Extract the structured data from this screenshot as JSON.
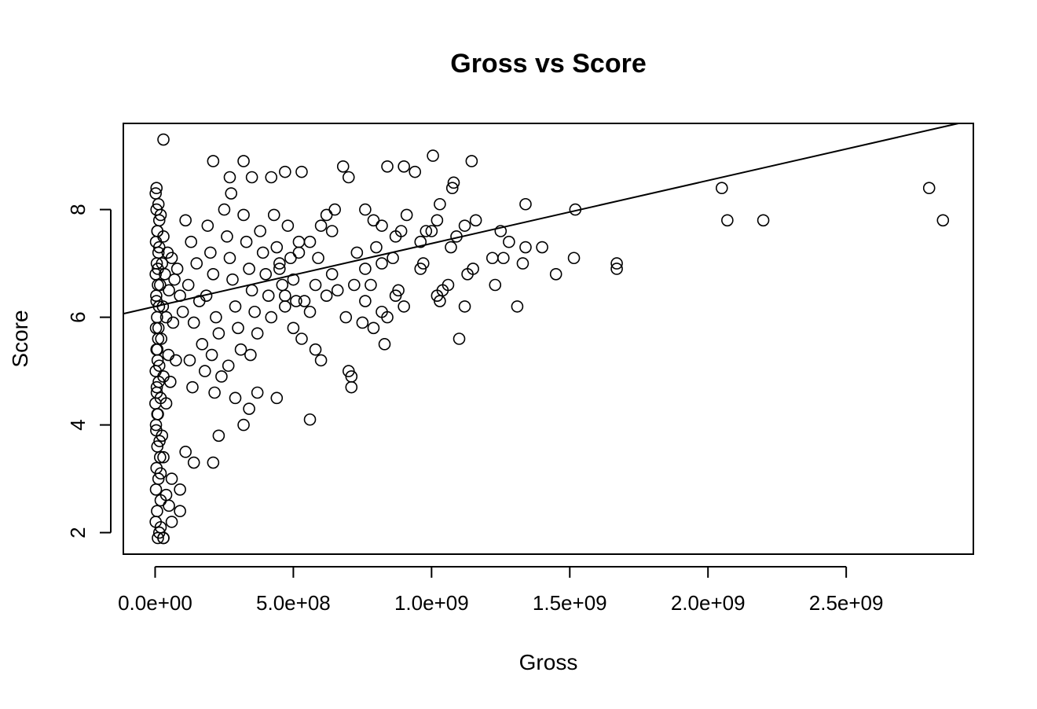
{
  "chart_data": {
    "type": "scatter",
    "title": "Gross vs Score",
    "xlabel": "Gross",
    "ylabel": "Score",
    "xlim": [
      -115000000,
      2960000000
    ],
    "ylim": [
      1.6,
      9.6
    ],
    "x_ticks": [
      0,
      500000000,
      1000000000,
      1500000000,
      2000000000,
      2500000000
    ],
    "x_tick_labels": [
      "0.0e+00",
      "5.0e+08",
      "1.0e+09",
      "1.5e+09",
      "2.0e+09",
      "2.5e+09"
    ],
    "y_ticks": [
      2,
      4,
      6,
      8
    ],
    "y_tick_labels": [
      "2",
      "4",
      "6",
      "8"
    ],
    "grid": false,
    "marker": "open-circle",
    "colors": {
      "points": "#000000",
      "line": "#000000",
      "frame": "#000000"
    },
    "regression_line": {
      "intercept": 6.2,
      "slope": 1.17e-09
    },
    "dense_cluster_note_points": [
      [
        5000000,
        8.4
      ],
      [
        12000000,
        8.1
      ],
      [
        20000000,
        7.9
      ],
      [
        8000000,
        7.6
      ],
      [
        30000000,
        7.5
      ],
      [
        15000000,
        7.3
      ],
      [
        45000000,
        7.2
      ],
      [
        25000000,
        7.0
      ],
      [
        60000000,
        7.1
      ],
      [
        10000000,
        6.9
      ],
      [
        35000000,
        6.8
      ],
      [
        80000000,
        6.9
      ],
      [
        18000000,
        6.6
      ],
      [
        50000000,
        6.5
      ],
      [
        70000000,
        6.7
      ],
      [
        5000000,
        6.3
      ],
      [
        28000000,
        6.2
      ],
      [
        90000000,
        6.4
      ],
      [
        40000000,
        6.0
      ],
      [
        12000000,
        5.8
      ],
      [
        65000000,
        5.9
      ],
      [
        22000000,
        5.6
      ],
      [
        100000000,
        6.1
      ],
      [
        8000000,
        5.4
      ],
      [
        48000000,
        5.3
      ],
      [
        15000000,
        5.1
      ],
      [
        75000000,
        5.2
      ],
      [
        30000000,
        4.9
      ],
      [
        6000000,
        4.7
      ],
      [
        55000000,
        4.8
      ],
      [
        20000000,
        4.5
      ],
      [
        10000000,
        4.2
      ],
      [
        40000000,
        4.4
      ],
      [
        3000000,
        4.0
      ],
      [
        25000000,
        3.8
      ],
      [
        8000000,
        3.6
      ],
      [
        18000000,
        3.4
      ],
      [
        5000000,
        3.2
      ],
      [
        12000000,
        3.0
      ],
      [
        3000000,
        2.8
      ],
      [
        20000000,
        2.6
      ],
      [
        7000000,
        2.4
      ],
      [
        2000000,
        2.2
      ],
      [
        15000000,
        2.0
      ],
      [
        30000000,
        1.9
      ],
      [
        110000000,
        7.8
      ],
      [
        130000000,
        7.4
      ],
      [
        150000000,
        7.0
      ],
      [
        120000000,
        6.6
      ],
      [
        160000000,
        6.3
      ],
      [
        140000000,
        5.9
      ],
      [
        170000000,
        5.5
      ],
      [
        125000000,
        5.2
      ],
      [
        180000000,
        5.0
      ],
      [
        135000000,
        4.7
      ],
      [
        190000000,
        7.7
      ],
      [
        200000000,
        7.2
      ],
      [
        210000000,
        6.8
      ],
      [
        185000000,
        6.4
      ],
      [
        220000000,
        6.0
      ],
      [
        230000000,
        5.7
      ],
      [
        205000000,
        5.3
      ],
      [
        240000000,
        4.9
      ],
      [
        215000000,
        4.6
      ],
      [
        250000000,
        8.0
      ],
      [
        260000000,
        7.5
      ],
      [
        270000000,
        7.1
      ],
      [
        280000000,
        6.7
      ],
      [
        290000000,
        6.2
      ],
      [
        300000000,
        5.8
      ],
      [
        310000000,
        5.4
      ],
      [
        265000000,
        5.1
      ],
      [
        275000000,
        8.3
      ],
      [
        320000000,
        7.9
      ],
      [
        330000000,
        7.4
      ],
      [
        340000000,
        6.9
      ],
      [
        350000000,
        6.5
      ],
      [
        360000000,
        6.1
      ],
      [
        370000000,
        5.7
      ],
      [
        345000000,
        5.3
      ],
      [
        380000000,
        7.6
      ],
      [
        390000000,
        7.2
      ],
      [
        400000000,
        6.8
      ],
      [
        410000000,
        6.4
      ],
      [
        420000000,
        6.0
      ],
      [
        430000000,
        7.9
      ],
      [
        440000000,
        7.3
      ],
      [
        450000000,
        6.9
      ],
      [
        460000000,
        6.6
      ],
      [
        470000000,
        6.2
      ],
      [
        480000000,
        7.7
      ],
      [
        490000000,
        7.1
      ],
      [
        500000000,
        6.7
      ],
      [
        510000000,
        6.3
      ],
      [
        520000000,
        7.4
      ]
    ],
    "points": [
      [
        30000000,
        9.3
      ],
      [
        210000000,
        8.9
      ],
      [
        320000000,
        8.9
      ],
      [
        270000000,
        8.6
      ],
      [
        350000000,
        8.6
      ],
      [
        420000000,
        8.6
      ],
      [
        470000000,
        8.7
      ],
      [
        530000000,
        8.7
      ],
      [
        680000000,
        8.8
      ],
      [
        700000000,
        8.6
      ],
      [
        840000000,
        8.8
      ],
      [
        900000000,
        8.8
      ],
      [
        940000000,
        8.7
      ],
      [
        1005000000,
        9.0
      ],
      [
        1145000000,
        8.9
      ],
      [
        1080000000,
        8.5
      ],
      [
        1075000000,
        8.4
      ],
      [
        1030000000,
        8.1
      ],
      [
        1340000000,
        8.1
      ],
      [
        1520000000,
        8.0
      ],
      [
        2050000000,
        8.4
      ],
      [
        2800000000,
        8.4
      ],
      [
        2070000000,
        7.8
      ],
      [
        2200000000,
        7.8
      ],
      [
        2850000000,
        7.8
      ],
      [
        1160000000,
        7.8
      ],
      [
        1250000000,
        7.6
      ],
      [
        1280000000,
        7.4
      ],
      [
        1340000000,
        7.3
      ],
      [
        1400000000,
        7.3
      ],
      [
        1515000000,
        7.1
      ],
      [
        1670000000,
        7.0
      ],
      [
        1670000000,
        6.9
      ],
      [
        1450000000,
        6.8
      ],
      [
        1330000000,
        7.0
      ],
      [
        1220000000,
        7.1
      ],
      [
        1260000000,
        7.1
      ],
      [
        1230000000,
        6.6
      ],
      [
        1310000000,
        6.2
      ],
      [
        1120000000,
        6.2
      ],
      [
        1100000000,
        5.6
      ],
      [
        1150000000,
        6.9
      ],
      [
        1130000000,
        6.8
      ],
      [
        1060000000,
        6.6
      ],
      [
        1040000000,
        6.5
      ],
      [
        1020000000,
        6.4
      ],
      [
        1030000000,
        6.3
      ],
      [
        1070000000,
        7.3
      ],
      [
        1120000000,
        7.7
      ],
      [
        1090000000,
        7.5
      ],
      [
        960000000,
        7.4
      ],
      [
        970000000,
        7.0
      ],
      [
        960000000,
        6.9
      ],
      [
        980000000,
        7.6
      ],
      [
        910000000,
        7.9
      ],
      [
        890000000,
        7.6
      ],
      [
        870000000,
        7.5
      ],
      [
        880000000,
        6.5
      ],
      [
        900000000,
        6.2
      ],
      [
        870000000,
        6.4
      ],
      [
        830000000,
        5.5
      ],
      [
        840000000,
        6.0
      ],
      [
        790000000,
        5.8
      ],
      [
        820000000,
        6.1
      ],
      [
        760000000,
        6.3
      ],
      [
        750000000,
        5.9
      ],
      [
        720000000,
        6.6
      ],
      [
        690000000,
        6.0
      ],
      [
        700000000,
        5.0
      ],
      [
        710000000,
        4.9
      ],
      [
        710000000,
        4.7
      ],
      [
        600000000,
        5.2
      ],
      [
        580000000,
        5.4
      ],
      [
        560000000,
        4.1
      ],
      [
        530000000,
        5.6
      ],
      [
        440000000,
        4.5
      ],
      [
        370000000,
        4.6
      ],
      [
        340000000,
        4.3
      ],
      [
        320000000,
        4.0
      ],
      [
        290000000,
        4.5
      ],
      [
        230000000,
        3.8
      ],
      [
        210000000,
        3.3
      ],
      [
        140000000,
        3.3
      ],
      [
        110000000,
        3.5
      ],
      [
        60000000,
        3.0
      ],
      [
        90000000,
        2.8
      ],
      [
        90000000,
        2.4
      ],
      [
        60000000,
        2.2
      ],
      [
        30000000,
        1.9
      ],
      [
        10000000,
        1.9
      ],
      [
        20000000,
        2.1
      ],
      [
        50000000,
        2.5
      ],
      [
        40000000,
        2.7
      ],
      [
        20000000,
        3.1
      ],
      [
        30000000,
        3.4
      ],
      [
        650000000,
        8.0
      ],
      [
        620000000,
        7.9
      ],
      [
        600000000,
        7.7
      ],
      [
        760000000,
        8.0
      ],
      [
        790000000,
        7.8
      ],
      [
        820000000,
        7.7
      ],
      [
        800000000,
        7.3
      ],
      [
        860000000,
        7.1
      ],
      [
        820000000,
        7.0
      ],
      [
        760000000,
        6.9
      ],
      [
        730000000,
        7.2
      ],
      [
        780000000,
        6.6
      ],
      [
        660000000,
        6.5
      ],
      [
        640000000,
        6.8
      ],
      [
        620000000,
        6.4
      ],
      [
        580000000,
        6.6
      ],
      [
        560000000,
        6.1
      ],
      [
        540000000,
        6.3
      ],
      [
        500000000,
        5.8
      ],
      [
        470000000,
        6.4
      ],
      [
        450000000,
        7.0
      ],
      [
        520000000,
        7.2
      ],
      [
        560000000,
        7.4
      ],
      [
        590000000,
        7.1
      ],
      [
        640000000,
        7.6
      ],
      [
        1000000000,
        7.6
      ],
      [
        1020000000,
        7.8
      ],
      [
        2000000,
        8.3
      ],
      [
        5000000,
        8.0
      ],
      [
        15000000,
        7.8
      ],
      [
        8000000,
        7.6
      ],
      [
        3000000,
        7.4
      ],
      [
        12000000,
        7.2
      ],
      [
        6000000,
        7.0
      ],
      [
        2000000,
        6.8
      ],
      [
        10000000,
        6.6
      ],
      [
        4000000,
        6.4
      ],
      [
        14000000,
        6.2
      ],
      [
        7000000,
        6.0
      ],
      [
        3000000,
        5.8
      ],
      [
        11000000,
        5.6
      ],
      [
        5000000,
        5.4
      ],
      [
        9000000,
        5.2
      ],
      [
        2000000,
        5.0
      ],
      [
        13000000,
        4.8
      ],
      [
        6000000,
        4.6
      ],
      [
        1000000,
        4.4
      ],
      [
        8000000,
        4.2
      ],
      [
        4000000,
        3.9
      ],
      [
        16000000,
        3.7
      ]
    ]
  }
}
